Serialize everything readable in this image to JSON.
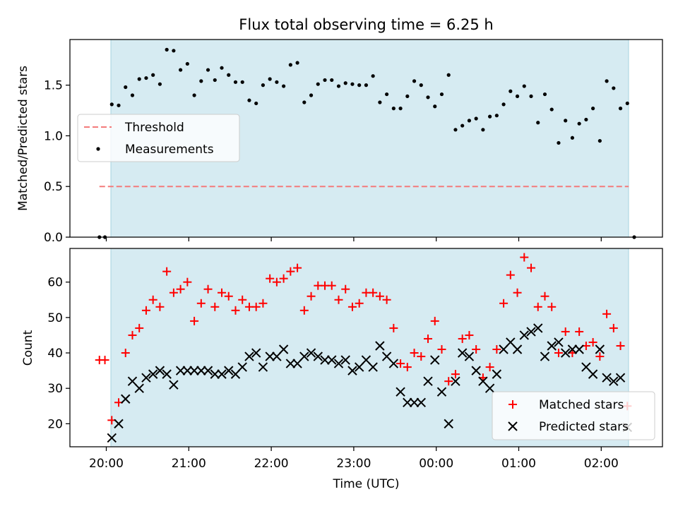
{
  "chart_data": [
    {
      "type": "scatter",
      "title": "Flux total observing time = 6.25 h",
      "xlabel": "",
      "ylabel": "Matched/Predicted stars",
      "ylim": [
        0,
        1.95
      ],
      "yticks": [
        0.0,
        0.5,
        1.0,
        1.5
      ],
      "ytick_labels": [
        "0.0",
        "0.5",
        "1.0",
        "1.5"
      ],
      "shaded_interval": [
        "20:04",
        "23:59+02:18"
      ],
      "threshold": {
        "name": "Threshold",
        "value": 0.5,
        "color": "#f47b7b",
        "style": "dashed",
        "x_range": [
          "19:55",
          "02:20"
        ]
      },
      "legend": {
        "placement": "center-left",
        "entries": [
          "Threshold",
          "Measurements"
        ]
      },
      "series": [
        {
          "name": "Measurements",
          "marker": "dot",
          "color": "#000000",
          "points": [
            [
              "19:55",
              0.0
            ],
            [
              "19:59",
              0.0
            ],
            [
              "20:04",
              1.31
            ],
            [
              "20:09",
              1.3
            ],
            [
              "20:14",
              1.48
            ],
            [
              "20:19",
              1.4
            ],
            [
              "20:24",
              1.56
            ],
            [
              "20:29",
              1.57
            ],
            [
              "20:34",
              1.6
            ],
            [
              "20:39",
              1.51
            ],
            [
              "20:44",
              1.85
            ],
            [
              "20:49",
              1.84
            ],
            [
              "20:54",
              1.65
            ],
            [
              "20:59",
              1.71
            ],
            [
              "21:04",
              1.4
            ],
            [
              "21:09",
              1.54
            ],
            [
              "21:14",
              1.65
            ],
            [
              "21:19",
              1.55
            ],
            [
              "21:24",
              1.67
            ],
            [
              "21:29",
              1.6
            ],
            [
              "21:34",
              1.53
            ],
            [
              "21:39",
              1.53
            ],
            [
              "21:44",
              1.35
            ],
            [
              "21:49",
              1.32
            ],
            [
              "21:54",
              1.5
            ],
            [
              "21:59",
              1.56
            ],
            [
              "22:04",
              1.53
            ],
            [
              "22:09",
              1.49
            ],
            [
              "22:14",
              1.7
            ],
            [
              "22:19",
              1.72
            ],
            [
              "22:24",
              1.33
            ],
            [
              "22:29",
              1.4
            ],
            [
              "22:34",
              1.51
            ],
            [
              "22:39",
              1.55
            ],
            [
              "22:44",
              1.55
            ],
            [
              "22:49",
              1.49
            ],
            [
              "22:54",
              1.52
            ],
            [
              "22:59",
              1.51
            ],
            [
              "23:04",
              1.5
            ],
            [
              "23:09",
              1.5
            ],
            [
              "23:14",
              1.59
            ],
            [
              "23:19",
              1.33
            ],
            [
              "23:24",
              1.41
            ],
            [
              "23:29",
              1.27
            ],
            [
              "23:34",
              1.27
            ],
            [
              "23:39",
              1.39
            ],
            [
              "23:44",
              1.54
            ],
            [
              "23:49",
              1.5
            ],
            [
              "23:54",
              1.38
            ],
            [
              "23:59",
              1.29
            ],
            [
              "00:04",
              1.41
            ],
            [
              "00:09",
              1.6
            ],
            [
              "00:14",
              1.06
            ],
            [
              "00:19",
              1.1
            ],
            [
              "00:24",
              1.15
            ],
            [
              "00:29",
              1.17
            ],
            [
              "00:34",
              1.06
            ],
            [
              "00:39",
              1.19
            ],
            [
              "00:44",
              1.2
            ],
            [
              "00:49",
              1.31
            ],
            [
              "00:54",
              1.44
            ],
            [
              "00:59",
              1.39
            ],
            [
              "01:04",
              1.49
            ],
            [
              "01:09",
              1.39
            ],
            [
              "01:14",
              1.13
            ],
            [
              "01:19",
              1.41
            ],
            [
              "01:24",
              1.26
            ],
            [
              "01:29",
              0.93
            ],
            [
              "01:34",
              1.15
            ],
            [
              "01:39",
              0.98
            ],
            [
              "01:44",
              1.12
            ],
            [
              "01:49",
              1.16
            ],
            [
              "01:54",
              1.27
            ],
            [
              "01:59",
              0.95
            ],
            [
              "02:04",
              1.54
            ],
            [
              "02:09",
              1.47
            ],
            [
              "02:14",
              1.27
            ],
            [
              "02:19",
              1.32
            ],
            [
              "02:24",
              0.0
            ]
          ]
        }
      ]
    },
    {
      "type": "scatter",
      "title": "",
      "xlabel": "Time (UTC)",
      "ylabel": "Count",
      "ylim": [
        13.5,
        69.5
      ],
      "yticks": [
        20,
        30,
        40,
        50,
        60
      ],
      "ytick_labels": [
        "20",
        "30",
        "40",
        "50",
        "60"
      ],
      "x_ticks": [
        "20:00",
        "21:00",
        "22:00",
        "23:00",
        "00:00",
        "01:00",
        "02:00"
      ],
      "shaded_interval": [
        "20:04",
        "23:59+02:18"
      ],
      "legend": {
        "placement": "lower-right",
        "entries": [
          "Matched stars",
          "Predicted stars"
        ]
      },
      "series": [
        {
          "name": "Matched stars",
          "marker": "plus",
          "color": "#ff0000",
          "points": [
            [
              "19:55",
              38
            ],
            [
              "19:59",
              38
            ],
            [
              "20:04",
              21
            ],
            [
              "20:09",
              26
            ],
            [
              "20:14",
              40
            ],
            [
              "20:19",
              45
            ],
            [
              "20:24",
              47
            ],
            [
              "20:29",
              52
            ],
            [
              "20:34",
              55
            ],
            [
              "20:39",
              53
            ],
            [
              "20:44",
              63
            ],
            [
              "20:49",
              57
            ],
            [
              "20:54",
              58
            ],
            [
              "20:59",
              60
            ],
            [
              "21:04",
              49
            ],
            [
              "21:09",
              54
            ],
            [
              "21:14",
              58
            ],
            [
              "21:19",
              53
            ],
            [
              "21:24",
              57
            ],
            [
              "21:29",
              56
            ],
            [
              "21:34",
              52
            ],
            [
              "21:39",
              55
            ],
            [
              "21:44",
              53
            ],
            [
              "21:49",
              53
            ],
            [
              "21:54",
              54
            ],
            [
              "21:59",
              61
            ],
            [
              "22:04",
              60
            ],
            [
              "22:09",
              61
            ],
            [
              "22:14",
              63
            ],
            [
              "22:19",
              64
            ],
            [
              "22:24",
              52
            ],
            [
              "22:29",
              56
            ],
            [
              "22:34",
              59
            ],
            [
              "22:39",
              59
            ],
            [
              "22:44",
              59
            ],
            [
              "22:49",
              55
            ],
            [
              "22:54",
              58
            ],
            [
              "22:59",
              53
            ],
            [
              "23:04",
              54
            ],
            [
              "23:09",
              57
            ],
            [
              "23:14",
              57
            ],
            [
              "23:19",
              56
            ],
            [
              "23:24",
              55
            ],
            [
              "23:29",
              47
            ],
            [
              "23:34",
              37
            ],
            [
              "23:39",
              36
            ],
            [
              "23:44",
              40
            ],
            [
              "23:49",
              39
            ],
            [
              "23:54",
              44
            ],
            [
              "23:59",
              49
            ],
            [
              "00:04",
              41
            ],
            [
              "00:09",
              32
            ],
            [
              "00:14",
              34
            ],
            [
              "00:19",
              44
            ],
            [
              "00:24",
              45
            ],
            [
              "00:29",
              41
            ],
            [
              "00:34",
              33
            ],
            [
              "00:39",
              36
            ],
            [
              "00:44",
              41
            ],
            [
              "00:49",
              54
            ],
            [
              "00:54",
              62
            ],
            [
              "00:59",
              57
            ],
            [
              "01:04",
              67
            ],
            [
              "01:09",
              64
            ],
            [
              "01:14",
              53
            ],
            [
              "01:19",
              56
            ],
            [
              "01:24",
              53
            ],
            [
              "01:29",
              40
            ],
            [
              "01:34",
              46
            ],
            [
              "01:39",
              40
            ],
            [
              "01:44",
              46
            ],
            [
              "01:49",
              42
            ],
            [
              "01:54",
              43
            ],
            [
              "01:59",
              39
            ],
            [
              "02:04",
              51
            ],
            [
              "02:09",
              47
            ],
            [
              "02:14",
              42
            ],
            [
              "02:19",
              25
            ]
          ]
        },
        {
          "name": "Predicted stars",
          "marker": "x",
          "color": "#000000",
          "points": [
            [
              "20:04",
              16
            ],
            [
              "20:09",
              20
            ],
            [
              "20:14",
              27
            ],
            [
              "20:19",
              32
            ],
            [
              "20:24",
              30
            ],
            [
              "20:29",
              33
            ],
            [
              "20:34",
              34
            ],
            [
              "20:39",
              35
            ],
            [
              "20:44",
              34
            ],
            [
              "20:49",
              31
            ],
            [
              "20:54",
              35
            ],
            [
              "20:59",
              35
            ],
            [
              "21:04",
              35
            ],
            [
              "21:09",
              35
            ],
            [
              "21:14",
              35
            ],
            [
              "21:19",
              34
            ],
            [
              "21:24",
              34
            ],
            [
              "21:29",
              35
            ],
            [
              "21:34",
              34
            ],
            [
              "21:39",
              36
            ],
            [
              "21:44",
              39
            ],
            [
              "21:49",
              40
            ],
            [
              "21:54",
              36
            ],
            [
              "21:59",
              39
            ],
            [
              "22:04",
              39
            ],
            [
              "22:09",
              41
            ],
            [
              "22:14",
              37
            ],
            [
              "22:19",
              37
            ],
            [
              "22:24",
              39
            ],
            [
              "22:29",
              40
            ],
            [
              "22:34",
              39
            ],
            [
              "22:39",
              38
            ],
            [
              "22:44",
              38
            ],
            [
              "22:49",
              37
            ],
            [
              "22:54",
              38
            ],
            [
              "22:59",
              35
            ],
            [
              "23:04",
              36
            ],
            [
              "23:09",
              38
            ],
            [
              "23:14",
              36
            ],
            [
              "23:19",
              42
            ],
            [
              "23:24",
              39
            ],
            [
              "23:29",
              37
            ],
            [
              "23:34",
              29
            ],
            [
              "23:39",
              26
            ],
            [
              "23:44",
              26
            ],
            [
              "23:49",
              26
            ],
            [
              "23:54",
              32
            ],
            [
              "23:59",
              38
            ],
            [
              "00:04",
              29
            ],
            [
              "00:09",
              20
            ],
            [
              "00:14",
              32
            ],
            [
              "00:19",
              40
            ],
            [
              "00:24",
              39
            ],
            [
              "00:29",
              35
            ],
            [
              "00:34",
              32
            ],
            [
              "00:39",
              30
            ],
            [
              "00:44",
              34
            ],
            [
              "00:49",
              41
            ],
            [
              "00:54",
              43
            ],
            [
              "00:59",
              41
            ],
            [
              "01:04",
              45
            ],
            [
              "01:09",
              46
            ],
            [
              "01:14",
              47
            ],
            [
              "01:19",
              39
            ],
            [
              "01:24",
              42
            ],
            [
              "01:29",
              43
            ],
            [
              "01:34",
              40
            ],
            [
              "01:39",
              41
            ],
            [
              "01:44",
              41
            ],
            [
              "01:49",
              36
            ],
            [
              "01:54",
              34
            ],
            [
              "01:59",
              41
            ],
            [
              "02:04",
              33
            ],
            [
              "02:09",
              32
            ],
            [
              "02:14",
              33
            ],
            [
              "02:19",
              19
            ]
          ]
        }
      ]
    }
  ]
}
